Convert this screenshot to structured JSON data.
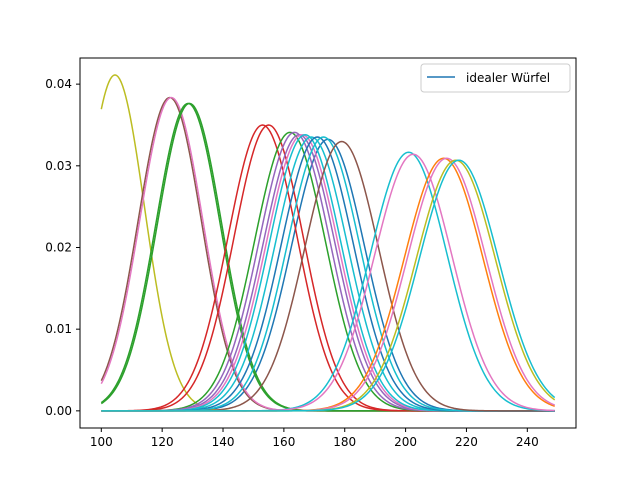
{
  "chart_data": {
    "type": "line",
    "title": "",
    "xlabel": "",
    "ylabel": "",
    "xlim": [
      93,
      256
    ],
    "ylim": [
      -0.0021,
      0.0432
    ],
    "x_range": [
      100,
      249
    ],
    "xticks": [
      100,
      120,
      140,
      160,
      180,
      200,
      220,
      240
    ],
    "yticks": [
      0.0,
      0.01,
      0.02,
      0.03,
      0.04
    ],
    "ytick_labels": [
      "0.00",
      "0.01",
      "0.02",
      "0.03",
      "0.04"
    ],
    "grid": false,
    "legend": {
      "position": "top-right",
      "entries": [
        "idealer Würfel"
      ]
    },
    "series": [
      {
        "name": "idealer Würfel",
        "color": "#1f77b4",
        "mean": 174.5,
        "sd": 12.0
      },
      {
        "color": "#bcbd22",
        "mean": 104.5,
        "sd": 9.7
      },
      {
        "color": "#8c564b",
        "mean": 122.5,
        "sd": 10.4
      },
      {
        "color": "#e377c2",
        "mean": 123.0,
        "sd": 10.4
      },
      {
        "color": "#2ca02c",
        "mean": 128.5,
        "sd": 10.6
      },
      {
        "color": "#2ca02c",
        "mean": 129.0,
        "sd": 10.6
      },
      {
        "color": "#d62728",
        "mean": 153.0,
        "sd": 11.4
      },
      {
        "color": "#d62728",
        "mean": 155.0,
        "sd": 11.4
      },
      {
        "color": "#2ca02c",
        "mean": 162.0,
        "sd": 11.7
      },
      {
        "color": "#9467bd",
        "mean": 163.5,
        "sd": 11.7
      },
      {
        "color": "#9467bd",
        "mean": 165.0,
        "sd": 11.8
      },
      {
        "color": "#e377c2",
        "mean": 166.0,
        "sd": 11.8
      },
      {
        "color": "#17becf",
        "mean": 167.0,
        "sd": 11.8
      },
      {
        "color": "#17becf",
        "mean": 169.0,
        "sd": 11.9
      },
      {
        "color": "#1f77b4",
        "mean": 171.0,
        "sd": 11.9
      },
      {
        "color": "#17becf",
        "mean": 173.0,
        "sd": 11.9
      },
      {
        "color": "#8c564b",
        "mean": 179.0,
        "sd": 12.1
      },
      {
        "color": "#17becf",
        "mean": 201.0,
        "sd": 12.6
      },
      {
        "color": "#e377c2",
        "mean": 202.5,
        "sd": 12.7
      },
      {
        "color": "#ff7f0e",
        "mean": 212.5,
        "sd": 12.9
      },
      {
        "color": "#e377c2",
        "mean": 213.5,
        "sd": 12.9
      },
      {
        "color": "#bcbd22",
        "mean": 216.5,
        "sd": 13.0
      },
      {
        "color": "#17becf",
        "mean": 217.5,
        "sd": 13.0
      }
    ]
  }
}
